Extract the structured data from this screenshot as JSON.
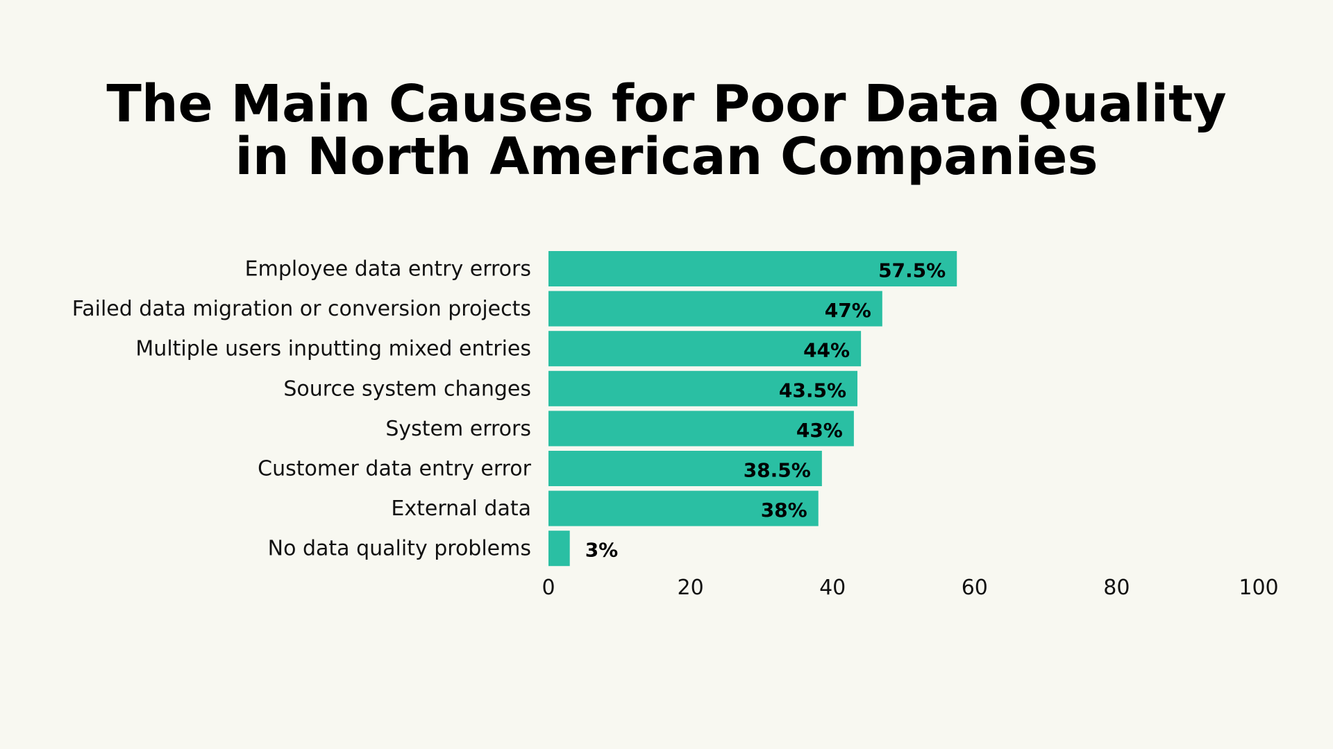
{
  "chart_data": {
    "type": "bar",
    "orientation": "horizontal",
    "title": "The Main Causes for Poor Data Quality in North American Companies",
    "title_lines": [
      "The Main Causes for Poor Data Quality",
      "in North American Companies"
    ],
    "categories": [
      "Employee data entry errors",
      "Failed data migration or conversion projects",
      "Multiple users inputting mixed entries",
      "Source system changes",
      "System errors",
      "Customer data entry error",
      "External data",
      "No data quality problems"
    ],
    "values": [
      57.5,
      47,
      44,
      43.5,
      43,
      38.5,
      38,
      3
    ],
    "data_labels": [
      "57.5%",
      "47%",
      "44%",
      "43.5%",
      "43%",
      "38.5%",
      "38%",
      "3%"
    ],
    "xlim": [
      0,
      100
    ],
    "xticks": [
      "0",
      "20",
      "40",
      "60",
      "80",
      "100"
    ],
    "xlabel": "",
    "ylabel": "",
    "grid": false,
    "colors": {
      "bar": "#2abfa3",
      "background": "#f8f8f1",
      "text": "#000000"
    }
  }
}
